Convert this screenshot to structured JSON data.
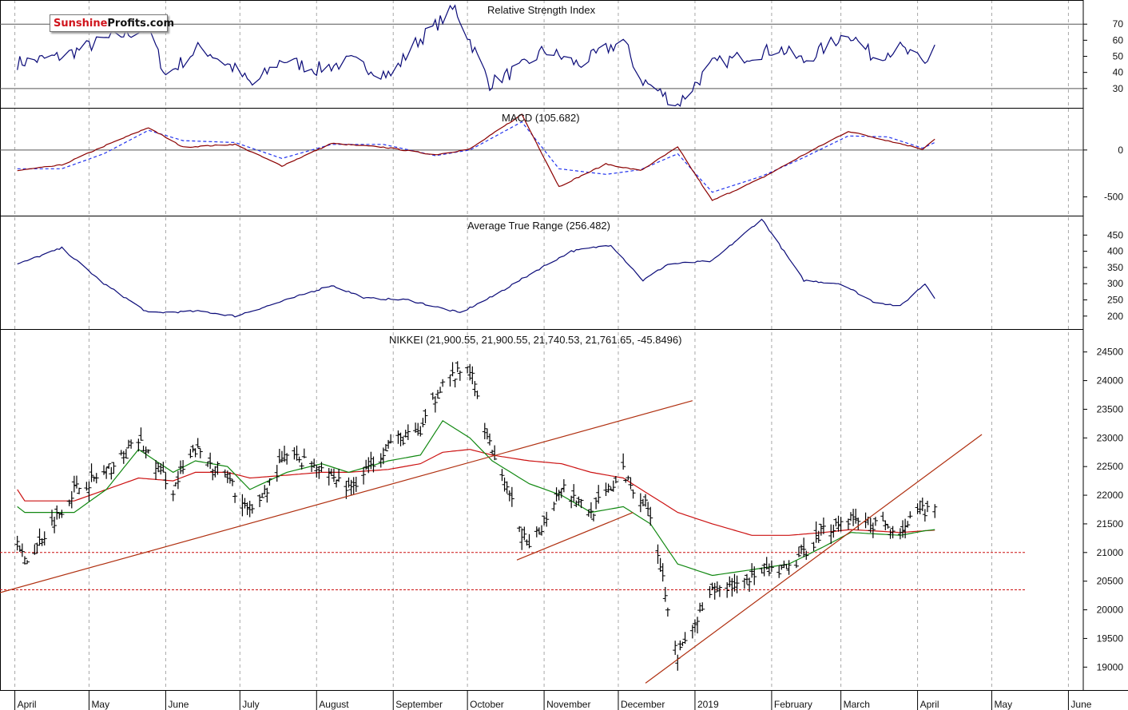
{
  "logo": {
    "part1": "Sunshine",
    "part2": "Profits.com"
  },
  "colors": {
    "price": "#000000",
    "grid": "#a8a8a8",
    "rsi_line": "#0a0a78",
    "macd_line": "#8b0000",
    "signal_line": "#2233ee",
    "atr_line": "#0a0a78",
    "ma_short": "#118811",
    "ma_long": "#cc1111",
    "trend_line": "#b03010",
    "border": "#000000"
  },
  "panels": {
    "rsi": {
      "title": "Relative Strength Index",
      "ticks": [
        "70",
        "60",
        "50",
        "40",
        "30"
      ]
    },
    "macd": {
      "title": "MACD (105.682)",
      "ticks": [
        "0",
        "-500"
      ]
    },
    "atr": {
      "title": "Average True Range (256.482)",
      "ticks": [
        "450",
        "400",
        "350",
        "300",
        "250",
        "200"
      ]
    },
    "price": {
      "title": "NIKKEI (21,900.55, 21,900.55, 21,740.53, 21,761.65, -45.8496)",
      "ticks": [
        "24500",
        "24000",
        "23500",
        "23000",
        "22500",
        "22000",
        "21500",
        "21000",
        "20500",
        "20000",
        "19500",
        "19000"
      ]
    }
  },
  "x_labels": [
    "April",
    "May",
    "June",
    "July",
    "August",
    "September",
    "October",
    "November",
    "December",
    "2019",
    "February",
    "March",
    "April",
    "May",
    "June"
  ],
  "chart_data": [
    {
      "type": "line",
      "title": "Relative Strength Index",
      "ylim": [
        18,
        85
      ],
      "reference_lines": [
        70,
        30
      ],
      "x": [
        "2018-04-02",
        "2018-04-20",
        "2018-05-07",
        "2018-05-25",
        "2018-06-01",
        "2018-06-15",
        "2018-06-29",
        "2018-07-06",
        "2018-07-18",
        "2018-08-01",
        "2018-08-15",
        "2018-08-31",
        "2018-09-10",
        "2018-09-26",
        "2018-10-10",
        "2018-10-25",
        "2018-11-01",
        "2018-11-15",
        "2018-12-03",
        "2018-12-10",
        "2018-12-25",
        "2019-01-08",
        "2019-01-21",
        "2019-02-04",
        "2019-02-14",
        "2019-03-04",
        "2019-03-14",
        "2019-03-25",
        "2019-04-04",
        "2019-04-08"
      ],
      "series": [
        {
          "values": [
            46,
            50,
            60,
            68,
            38,
            56,
            42,
            32,
            48,
            42,
            47,
            38,
            58,
            80,
            33,
            45,
            54,
            45,
            60,
            36,
            20,
            45,
            50,
            55,
            47,
            65,
            50,
            55,
            45,
            58
          ]
        }
      ]
    },
    {
      "type": "line",
      "title": "MACD (105.682)",
      "ylim": [
        -700,
        450
      ],
      "x": [
        "2018-04-02",
        "2018-04-20",
        "2018-05-07",
        "2018-05-25",
        "2018-06-08",
        "2018-06-29",
        "2018-07-18",
        "2018-08-07",
        "2018-08-28",
        "2018-09-18",
        "2018-10-02",
        "2018-10-23",
        "2018-11-07",
        "2018-11-26",
        "2018-12-10",
        "2018-12-25",
        "2019-01-08",
        "2019-01-28",
        "2019-02-14",
        "2019-03-04",
        "2019-03-20",
        "2019-04-03",
        "2019-04-08"
      ],
      "series": [
        {
          "values": [
            -220,
            -160,
            40,
            240,
            30,
            60,
            -170,
            70,
            30,
            -50,
            10,
            380,
            -390,
            -150,
            -220,
            30,
            -540,
            -300,
            -50,
            200,
            100,
            10,
            120
          ]
        },
        {
          "values": [
            -200,
            -200,
            -40,
            210,
            100,
            80,
            -90,
            60,
            60,
            -60,
            0,
            300,
            -200,
            -260,
            -210,
            -40,
            -450,
            -280,
            -80,
            150,
            140,
            20,
            80
          ]
        }
      ]
    },
    {
      "type": "line",
      "title": "Average True Range (256.482)",
      "ylim": [
        160,
        510
      ],
      "x": [
        "2018-04-02",
        "2018-04-20",
        "2018-05-07",
        "2018-05-25",
        "2018-06-15",
        "2018-06-29",
        "2018-07-18",
        "2018-08-07",
        "2018-08-21",
        "2018-09-07",
        "2018-09-28",
        "2018-10-11",
        "2018-10-31",
        "2018-11-12",
        "2018-11-28",
        "2018-12-11",
        "2018-12-21",
        "2019-01-08",
        "2019-01-28",
        "2019-02-14",
        "2019-03-01",
        "2019-03-14",
        "2019-03-25",
        "2019-04-04",
        "2019-04-08"
      ],
      "series": [
        {
          "values": [
            360,
            410,
            300,
            210,
            215,
            200,
            245,
            295,
            255,
            250,
            210,
            260,
            350,
            400,
            420,
            310,
            360,
            370,
            500,
            310,
            300,
            245,
            230,
            300,
            256
          ]
        }
      ]
    },
    {
      "type": "line",
      "title": "NIKKEI (21,900.55, 21,900.55, 21,740.53, 21,761.65, -45.8496)",
      "ylim": [
        18600,
        24900
      ],
      "x": [
        "2018-04-02",
        "2018-04-05",
        "2018-04-25",
        "2018-05-08",
        "2018-05-21",
        "2018-06-04",
        "2018-06-13",
        "2018-06-26",
        "2018-07-05",
        "2018-07-20",
        "2018-08-03",
        "2018-08-14",
        "2018-08-30",
        "2018-09-12",
        "2018-09-21",
        "2018-10-02",
        "2018-10-11",
        "2018-10-26",
        "2018-11-08",
        "2018-11-20",
        "2018-12-03",
        "2018-12-14",
        "2018-12-25",
        "2019-01-08",
        "2019-01-24",
        "2019-02-08",
        "2019-02-22",
        "2019-03-05",
        "2019-03-25",
        "2019-04-04",
        "2019-04-08"
      ],
      "series": [
        {
          "name": "NIKKEI",
          "values": [
            21300,
            20800,
            22100,
            22400,
            22950,
            22100,
            22800,
            22300,
            21650,
            22700,
            22500,
            22100,
            22900,
            23100,
            24000,
            24200,
            22800,
            21000,
            22200,
            21700,
            22400,
            21700,
            19200,
            20300,
            20600,
            20700,
            21400,
            21600,
            21400,
            21750,
            21761
          ]
        },
        {
          "values": [
            21800,
            21700,
            21700,
            22100,
            22800,
            22400,
            22600,
            22500,
            22100,
            22400,
            22550,
            22400,
            22600,
            22700,
            23300,
            23000,
            22600,
            22200,
            22000,
            21700,
            21800,
            21500,
            20800,
            20600,
            20700,
            20800,
            21100,
            21350,
            21300,
            21380,
            21400
          ]
        },
        {
          "values": [
            22100,
            21900,
            21900,
            22100,
            22300,
            22250,
            22400,
            22400,
            22300,
            22350,
            22400,
            22400,
            22450,
            22550,
            22750,
            22800,
            22700,
            22600,
            22550,
            22400,
            22300,
            22000,
            21700,
            21500,
            21300,
            21300,
            21350,
            21400,
            21350,
            21380,
            21390
          ]
        }
      ],
      "reference_lines": [
        21000,
        20350
      ]
    }
  ]
}
